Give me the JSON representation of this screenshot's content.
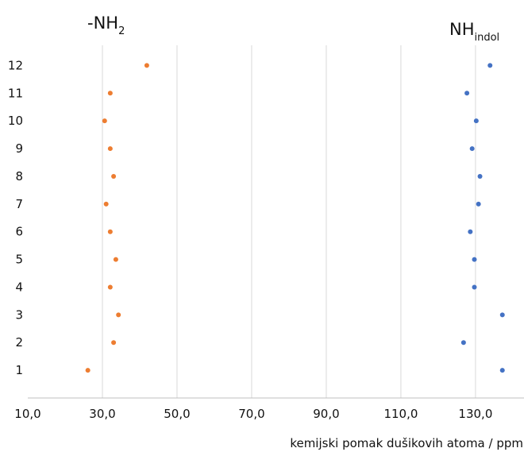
{
  "chart_data": {
    "type": "scatter",
    "xlabel": "kemijski pomak dušikovih atoma / ppm",
    "ylabel": "",
    "xlim": [
      10,
      143
    ],
    "ylim": [
      0,
      12.7
    ],
    "x_ticks": [
      "10,0",
      "30,0",
      "50,0",
      "70,0",
      "90,0",
      "110,0",
      "130,0"
    ],
    "y_ticks": [
      1,
      2,
      3,
      4,
      5,
      6,
      7,
      8,
      9,
      10,
      11,
      12
    ],
    "grid": "vertical",
    "legend": "none",
    "series": [
      {
        "name": "-NH2",
        "label_main": "-NH",
        "label_sub": "2",
        "color": "#ED7D31",
        "points": [
          {
            "y": 1,
            "x": 26.1
          },
          {
            "y": 2,
            "x": 33.0
          },
          {
            "y": 3,
            "x": 34.3
          },
          {
            "y": 4,
            "x": 32.1
          },
          {
            "y": 5,
            "x": 33.6
          },
          {
            "y": 6,
            "x": 32.1
          },
          {
            "y": 7,
            "x": 31.0
          },
          {
            "y": 8,
            "x": 33.0
          },
          {
            "y": 9,
            "x": 32.1
          },
          {
            "y": 10,
            "x": 30.6
          },
          {
            "y": 11,
            "x": 32.1
          },
          {
            "y": 12,
            "x": 41.9
          }
        ]
      },
      {
        "name": "NHindol",
        "label_main": "NH",
        "label_sub": "indol",
        "color": "#4472C4",
        "points": [
          {
            "y": 1,
            "x": 137.2
          },
          {
            "y": 2,
            "x": 126.8
          },
          {
            "y": 3,
            "x": 137.2
          },
          {
            "y": 4,
            "x": 129.7
          },
          {
            "y": 5,
            "x": 129.7
          },
          {
            "y": 6,
            "x": 128.6
          },
          {
            "y": 7,
            "x": 130.8
          },
          {
            "y": 8,
            "x": 131.2
          },
          {
            "y": 9,
            "x": 129.1
          },
          {
            "y": 10,
            "x": 130.2
          },
          {
            "y": 11,
            "x": 127.7
          },
          {
            "y": 12,
            "x": 133.9
          }
        ]
      }
    ]
  }
}
